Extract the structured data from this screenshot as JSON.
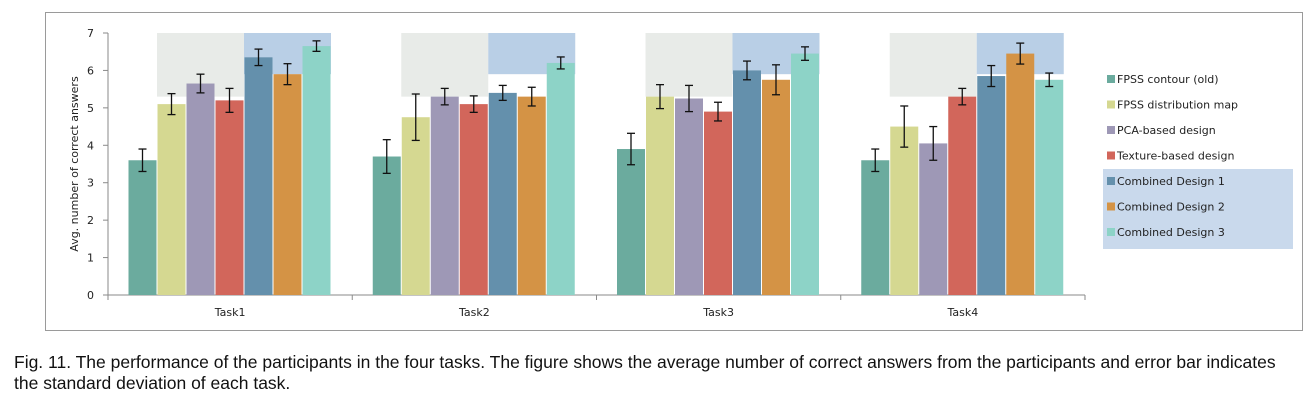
{
  "caption": "Fig. 11. The performance of the participants in the four tasks. The figure shows the average number of correct answers from the participants and error bar indicates the standard deviation of each task.",
  "chart_data": {
    "type": "bar",
    "title": "",
    "xlabel": "",
    "ylabel": "Avg. number of correct answers",
    "ylim": [
      0,
      7
    ],
    "yticks": [
      0,
      1,
      2,
      3,
      4,
      5,
      6,
      7
    ],
    "grid": false,
    "legend_position": "right",
    "categories": [
      "Task1",
      "Task2",
      "Task3",
      "Task4"
    ],
    "series": [
      {
        "name": "FPSS contour (old)",
        "color": "#6bab9e",
        "values": [
          3.6,
          3.7,
          3.9,
          3.6
        ],
        "errors": [
          0.3,
          0.45,
          0.42,
          0.3
        ]
      },
      {
        "name": "FPSS distribution map",
        "color": "#d5d891",
        "values": [
          5.1,
          4.75,
          5.3,
          4.5
        ],
        "errors": [
          0.28,
          0.62,
          0.32,
          0.55
        ]
      },
      {
        "name": "PCA-based design",
        "color": "#9e98b6",
        "values": [
          5.65,
          5.3,
          5.25,
          4.05
        ],
        "errors": [
          0.25,
          0.22,
          0.35,
          0.45
        ]
      },
      {
        "name": "Texture-based design",
        "color": "#d2665b",
        "values": [
          5.2,
          5.1,
          4.9,
          5.3
        ],
        "errors": [
          0.32,
          0.22,
          0.25,
          0.22
        ]
      },
      {
        "name": "Combined Design 1",
        "color": "#6490ac",
        "values": [
          6.35,
          5.4,
          6.0,
          5.85
        ],
        "errors": [
          0.22,
          0.2,
          0.25,
          0.28
        ]
      },
      {
        "name": "Combined Design 2",
        "color": "#d49345",
        "values": [
          5.9,
          5.3,
          5.75,
          6.45
        ],
        "errors": [
          0.28,
          0.25,
          0.4,
          0.28
        ]
      },
      {
        "name": "Combined Design 3",
        "color": "#8dd3c7",
        "values": [
          6.65,
          6.2,
          6.45,
          5.75
        ],
        "errors": [
          0.14,
          0.16,
          0.18,
          0.18
        ]
      }
    ]
  }
}
